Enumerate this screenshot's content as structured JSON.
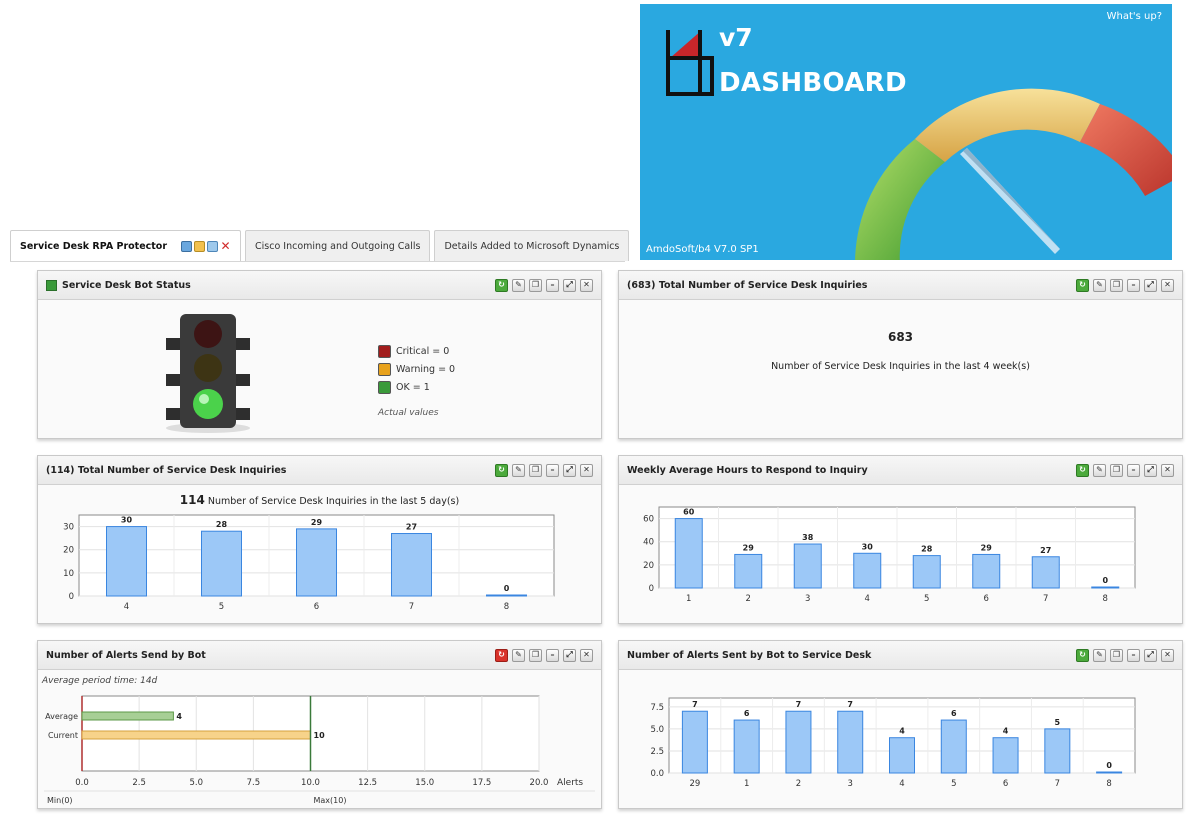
{
  "banner": {
    "whats_up": "What's up?",
    "version": "v7",
    "title": "DASHBOARD",
    "footer": "AmdoSoft/b4 V7.0 SP1"
  },
  "tabs": [
    {
      "label": "Service Desk RPA Protector",
      "active": true
    },
    {
      "label": "Cisco Incoming and Outgoing Calls",
      "active": false
    },
    {
      "label": "Details Added to Microsoft Dynamics",
      "active": false
    }
  ],
  "panels": {
    "bot_status": {
      "title": "Service Desk Bot Status",
      "legend": [
        {
          "label": "Critical = 0",
          "color": "#a11c1c"
        },
        {
          "label": "Warning = 0",
          "color": "#e8a21c"
        },
        {
          "label": "OK = 1",
          "color": "#3a9a3a"
        }
      ],
      "note": "Actual values",
      "active_light": "green"
    },
    "total_683": {
      "title": "(683) Total Number of Service Desk Inquiries",
      "number": "683",
      "text": "Number of Service Desk Inquiries in the last 4 week(s)"
    },
    "total_114": {
      "title": "(114) Total Number of Service Desk Inquiries",
      "number": "114",
      "text": "Number of Service Desk Inquiries in the last 5 day(s)"
    },
    "weekly_avg": {
      "title": "Weekly Average Hours to Respond to Inquiry"
    },
    "alerts_bot": {
      "title": "Number of Alerts Send by Bot",
      "note": "Average period time: 14d",
      "min_label": "Min(0)",
      "max_label": "Max(10)",
      "axis_title": "Alerts"
    },
    "alerts_sd": {
      "title": "Number of Alerts Sent by Bot to Service Desk"
    }
  },
  "colors": {
    "bar_fill": "#9cc8f7",
    "bar_stroke": "#3a86e0",
    "green_bar": "#a7cf95",
    "orange_bar": "#f7d38a",
    "banner_bg": "#2aa8e0"
  },
  "chart_data": [
    {
      "id": "chart114",
      "type": "bar",
      "categories": [
        "4",
        "5",
        "6",
        "7",
        "8"
      ],
      "values": [
        30,
        28,
        29,
        27,
        0
      ],
      "ylim": [
        0,
        35
      ],
      "yticks": [
        0,
        10,
        20,
        30
      ],
      "grid": true
    },
    {
      "id": "chartWeekly",
      "type": "bar",
      "categories": [
        "1",
        "2",
        "3",
        "4",
        "5",
        "6",
        "7",
        "8"
      ],
      "values": [
        60,
        29,
        38,
        30,
        28,
        29,
        27,
        0
      ],
      "ylim": [
        0,
        70
      ],
      "yticks": [
        0,
        20,
        40,
        60
      ],
      "grid": true
    },
    {
      "id": "chartAlerts",
      "type": "bar",
      "orientation": "horizontal",
      "categories": [
        "Average",
        "Current"
      ],
      "values": [
        4,
        10
      ],
      "bar_labels": [
        "4",
        "10"
      ],
      "xlim": [
        0,
        20
      ],
      "xticks": [
        "0.0",
        "2.5",
        "5.0",
        "7.5",
        "10.0",
        "12.5",
        "15.0",
        "17.5",
        "20.0"
      ],
      "xlabel": "Alerts",
      "grid": true
    },
    {
      "id": "chartSD",
      "type": "bar",
      "categories": [
        "29",
        "1",
        "2",
        "3",
        "4",
        "5",
        "6",
        "7",
        "8"
      ],
      "values": [
        7,
        6,
        7,
        7,
        4,
        6,
        4,
        5,
        0
      ],
      "ylim": [
        0,
        8.5
      ],
      "yticks": [
        "0.0",
        "2.5",
        "5.0",
        "7.5"
      ],
      "grid": true
    }
  ]
}
